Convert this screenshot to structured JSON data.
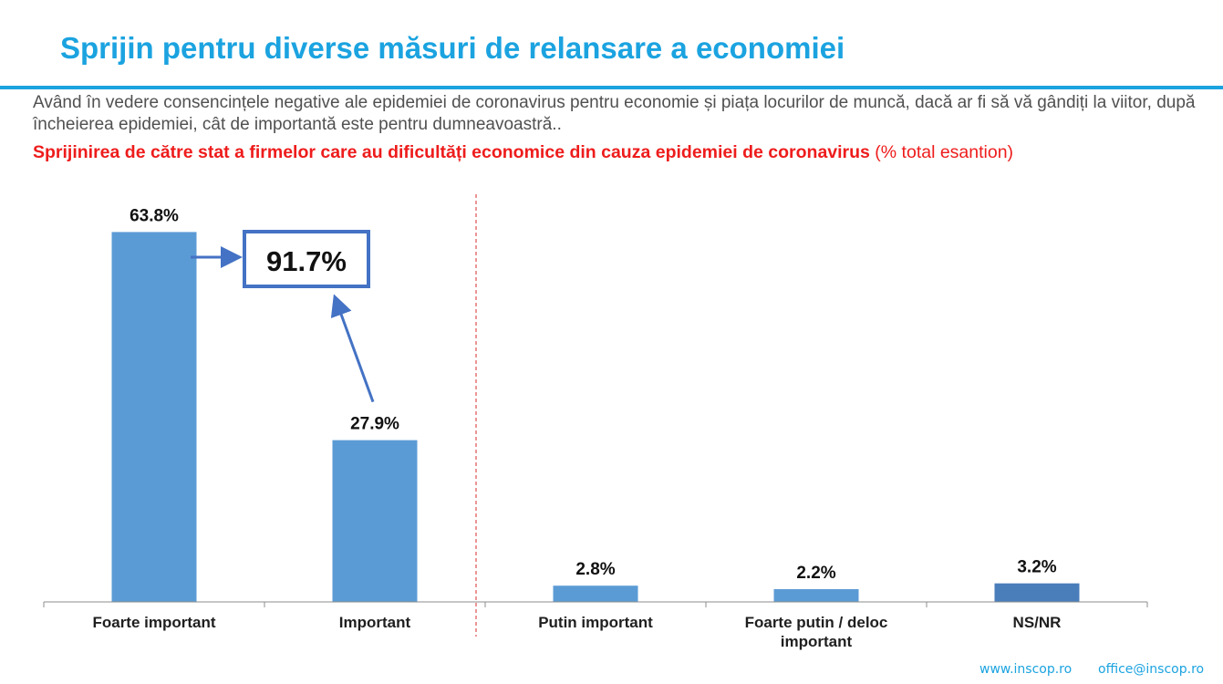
{
  "header": {
    "title": "Sprijin pentru diverse măsuri de relansare a economiei",
    "question": "Având în vedere consencințele negative ale epidemiei de coronavirus pentru economie și piața locurilor de muncă, dacă ar fi să vă gândiți la viitor, după încheierea epidemiei, cât de importantă este pentru dumneavoastră..",
    "subtitle_bold": "Sprijinirea de către stat a firmelor care au dificultăți economice din cauza epidemiei de coronavirus",
    "subtitle_note": " (% total esantion)"
  },
  "chart_data": {
    "type": "bar",
    "categories": [
      "Foarte important",
      "Important",
      "Putin important",
      "Foarte putin / deloc important",
      "NS/NR"
    ],
    "values": [
      63.8,
      27.9,
      2.8,
      2.2,
      3.2
    ],
    "data_labels": [
      "63.8%",
      "27.9%",
      "2.8%",
      "2.2%",
      "3.2%"
    ],
    "bar_colors": [
      "#5b9bd5",
      "#5b9bd5",
      "#5b9bd5",
      "#5b9bd5",
      "#4a7ebb"
    ],
    "ylim": [
      0,
      70
    ],
    "grid": false,
    "legend": "none",
    "annotation": {
      "label": "91.7%",
      "sum_of": [
        "Foarte important",
        "Important"
      ],
      "border_color": "#4472c4"
    },
    "divider_after_category": "Important",
    "divider_color": "#e05050"
  },
  "footer": {
    "website": "www.inscop.ro",
    "email": "office@inscop.ro"
  }
}
